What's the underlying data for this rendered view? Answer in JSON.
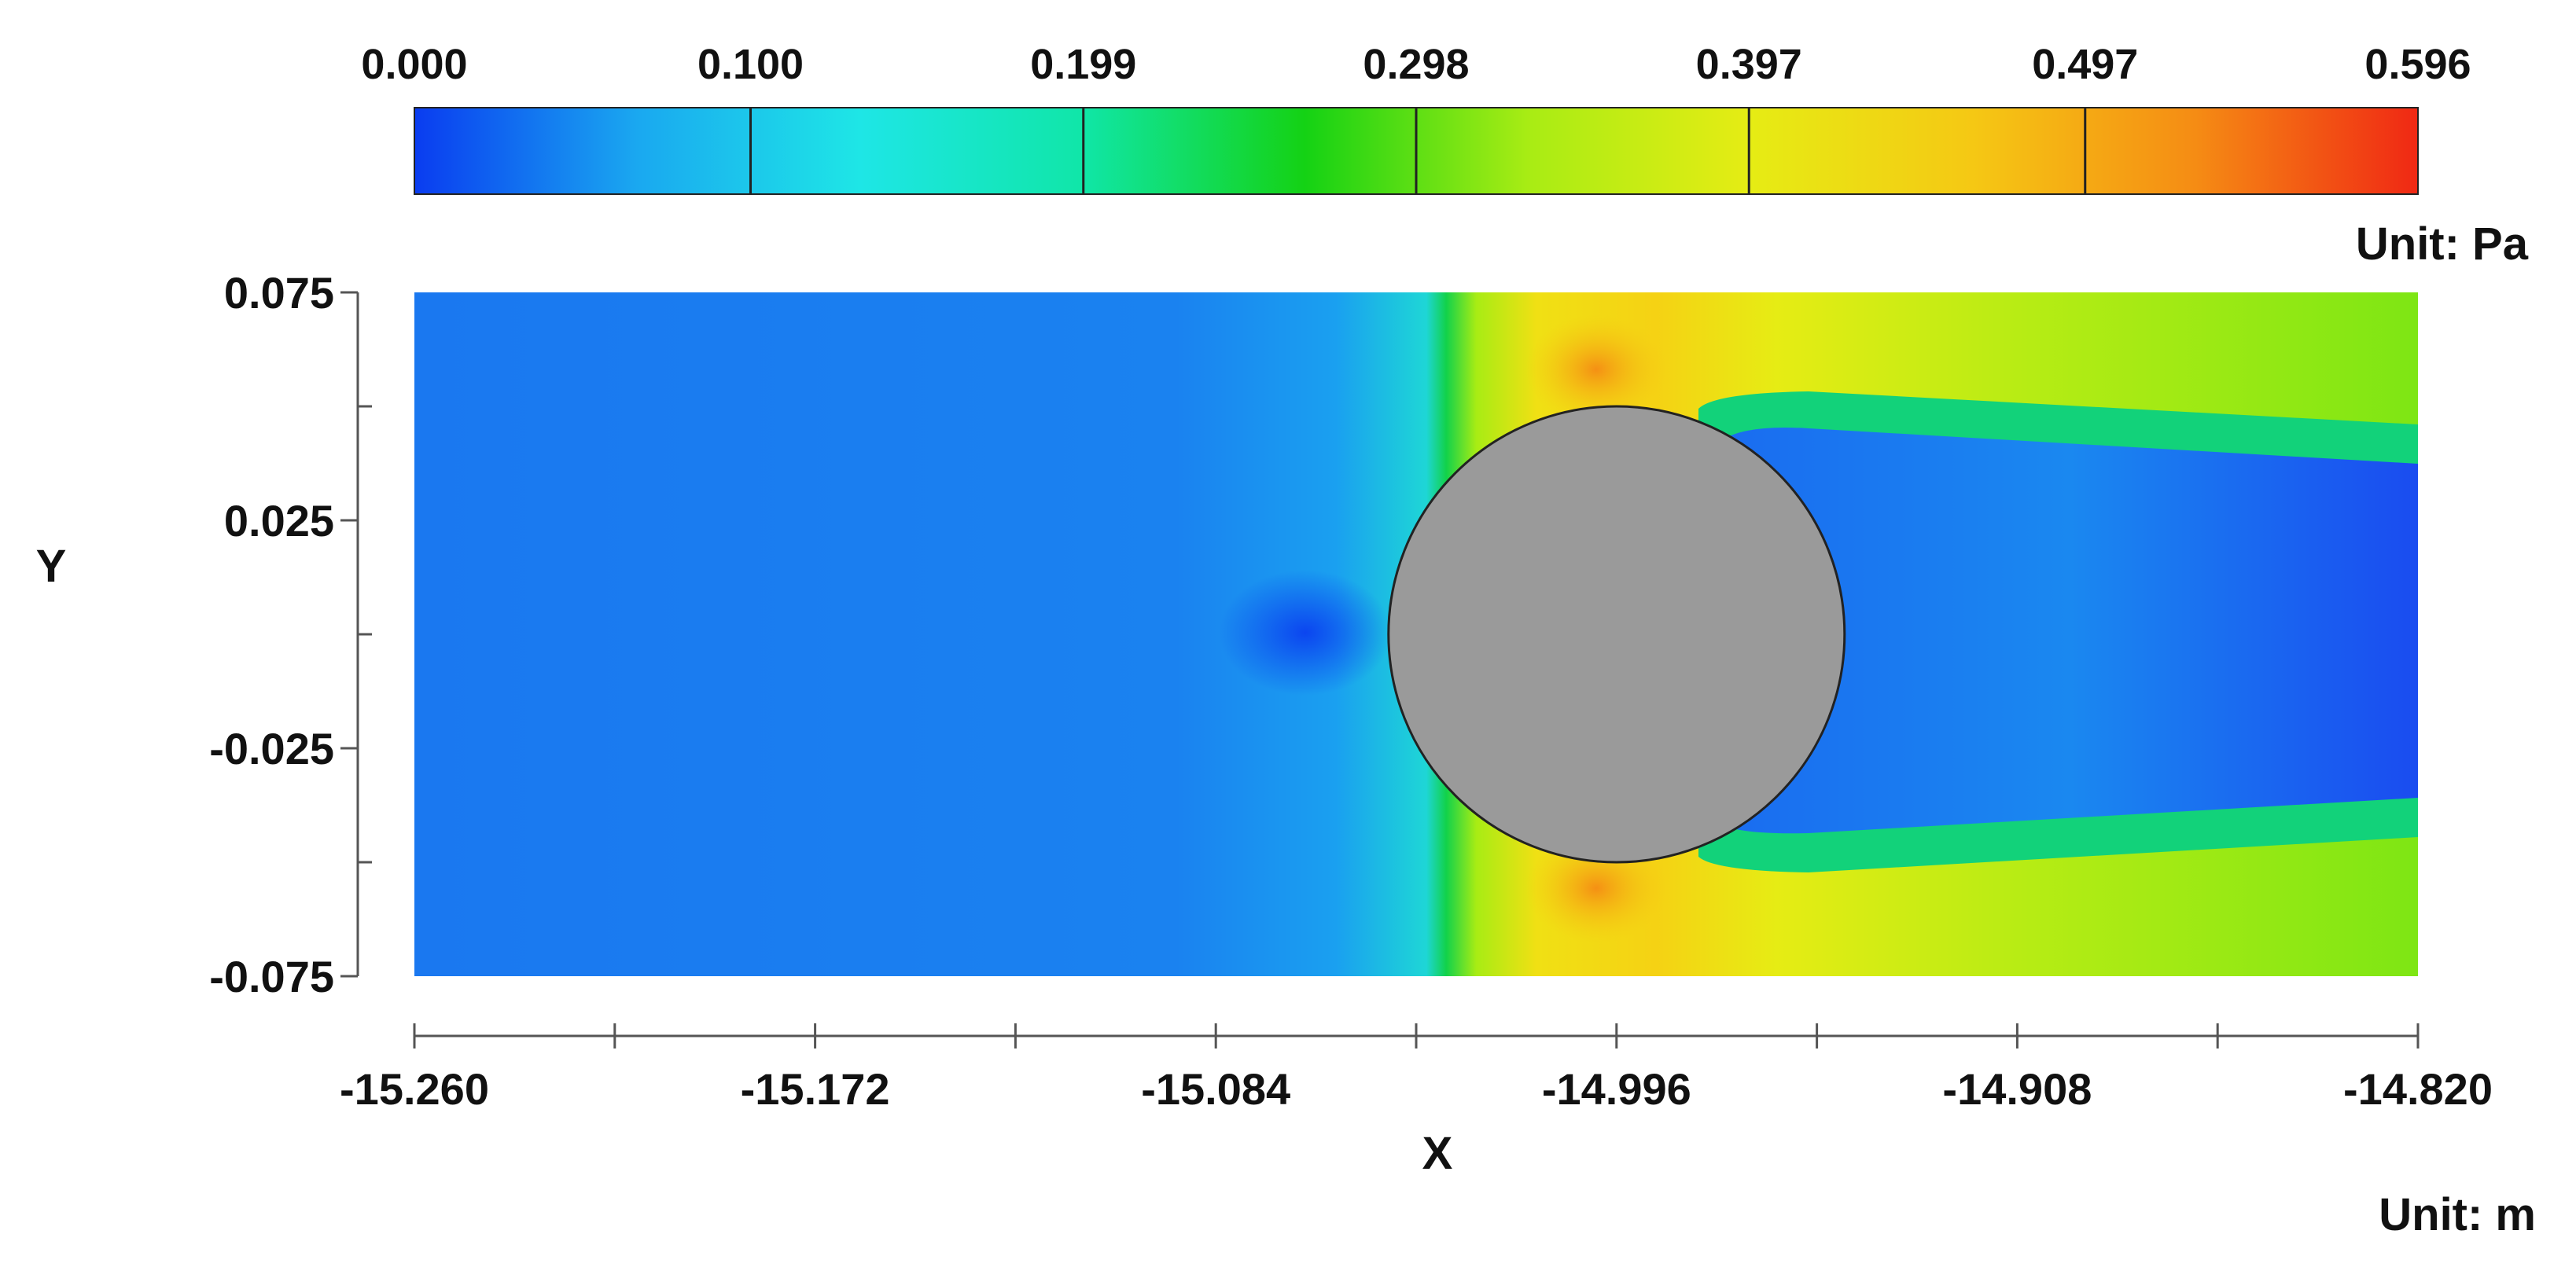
{
  "chart_data": {
    "type": "heatmap",
    "title": "",
    "xlabel": "X",
    "ylabel": "Y",
    "x_unit_label": "Unit: m",
    "colorbar_unit_label": "Unit: Pa",
    "xlim": [
      -15.26,
      -14.82
    ],
    "ylim": [
      -0.075,
      0.075
    ],
    "x_ticks": [
      -15.26,
      -15.172,
      -15.084,
      -14.996,
      -14.908,
      -14.82
    ],
    "x_tick_labels": [
      "-15.260",
      "-15.172",
      "-15.084",
      "-14.996",
      "-14.908",
      "-14.820"
    ],
    "y_ticks": [
      0.075,
      0.025,
      -0.025,
      -0.075
    ],
    "y_tick_labels": [
      "0.075",
      "0.025",
      "-0.025",
      "-0.075"
    ],
    "colorbar": {
      "min": 0.0,
      "max": 0.596,
      "tick_values": [
        0.0,
        0.1,
        0.199,
        0.298,
        0.397,
        0.497,
        0.596
      ],
      "tick_labels": [
        "0.000",
        "0.100",
        "0.199",
        "0.298",
        "0.397",
        "0.497",
        "0.596"
      ],
      "colors": [
        "#0a3cf0",
        "#1aa8f0",
        "#1ee6e6",
        "#10e6a8",
        "#14d214",
        "#a8ec14",
        "#e6ec14",
        "#f5c814",
        "#f58c14",
        "#f02814"
      ]
    },
    "obstacle": {
      "shape": "circle",
      "center": [
        -14.996,
        0.0
      ],
      "radius": 0.05,
      "fill": "#9a9a9a"
    },
    "legend": "colorbar-top"
  }
}
